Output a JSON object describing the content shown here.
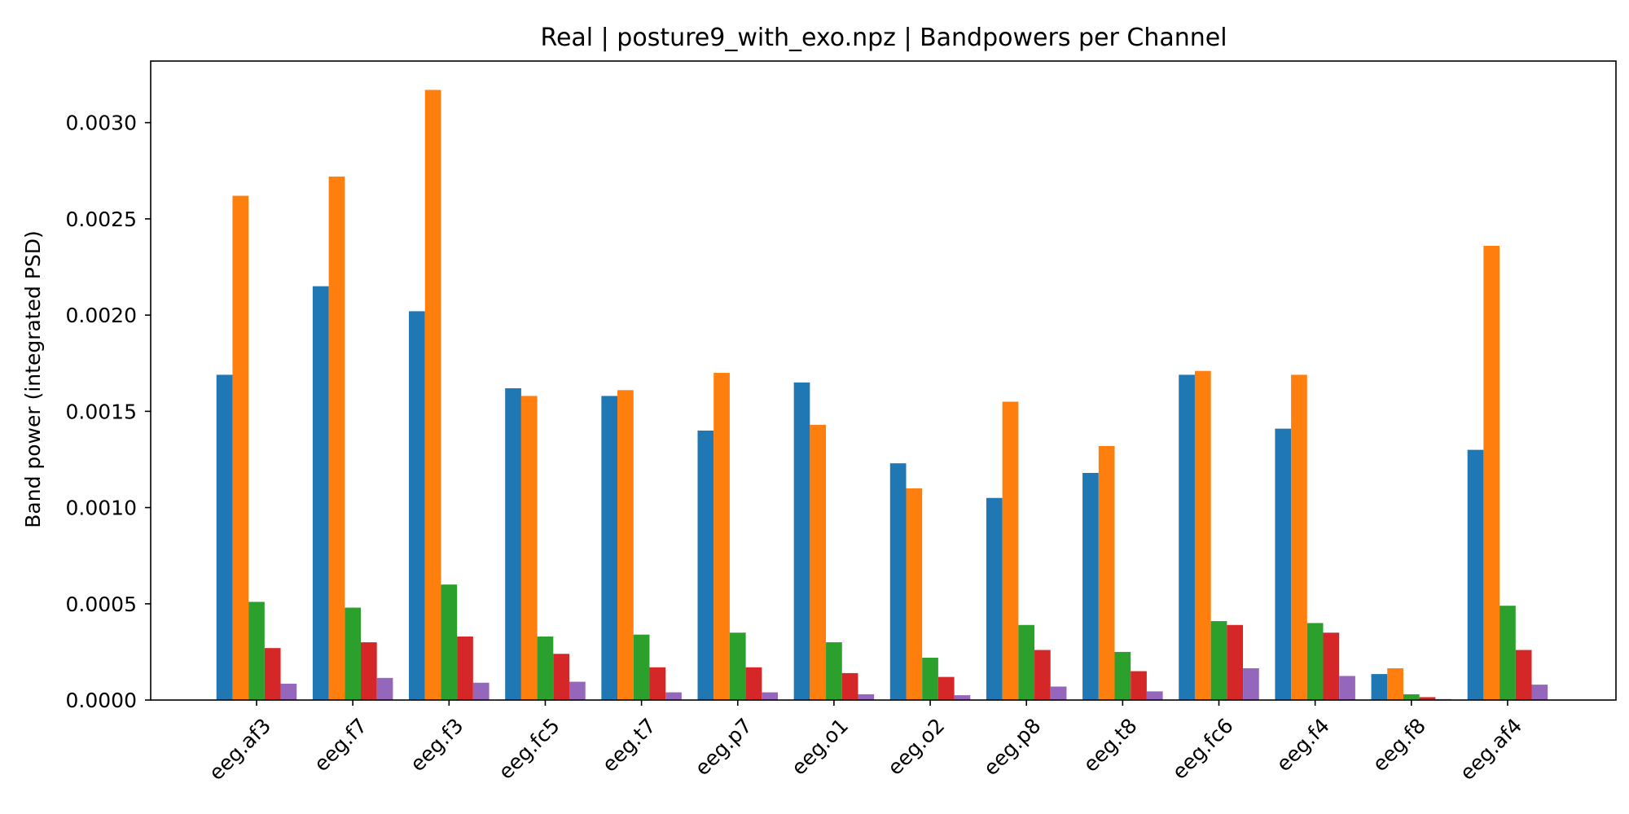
{
  "chart_data": {
    "type": "bar",
    "title": "Real | posture9_with_exo.npz | Bandpowers per Channel",
    "xlabel": "",
    "ylabel": "Band power (integrated PSD)",
    "ylim": [
      0,
      0.00332
    ],
    "yticks": [
      "0.0000",
      "0.0005",
      "0.0010",
      "0.0015",
      "0.0020",
      "0.0025",
      "0.0030"
    ],
    "ytick_values": [
      0,
      0.0005,
      0.001,
      0.0015,
      0.002,
      0.0025,
      0.003
    ],
    "grid": false,
    "legend": "none",
    "categories": [
      "eeg.af3",
      "eeg.f7",
      "eeg.f3",
      "eeg.fc5",
      "eeg.t7",
      "eeg.p7",
      "eeg.o1",
      "eeg.o2",
      "eeg.p8",
      "eeg.t8",
      "eeg.fc6",
      "eeg.f4",
      "eeg.f8",
      "eeg.af4"
    ],
    "series": [
      {
        "color": "#1f77b4",
        "values": [
          0.00169,
          0.00215,
          0.00202,
          0.00162,
          0.00158,
          0.0014,
          0.00165,
          0.00123,
          0.00105,
          0.00118,
          0.00169,
          0.00141,
          0.000135,
          0.0013
        ]
      },
      {
        "color": "#ff7f0e",
        "values": [
          0.00262,
          0.00272,
          0.00317,
          0.00158,
          0.00161,
          0.0017,
          0.00143,
          0.0011,
          0.00155,
          0.00132,
          0.00171,
          0.00169,
          0.000165,
          0.00236
        ]
      },
      {
        "color": "#2ca02c",
        "values": [
          0.00051,
          0.00048,
          0.0006,
          0.00033,
          0.00034,
          0.00035,
          0.0003,
          0.00022,
          0.00039,
          0.00025,
          0.00041,
          0.0004,
          3e-05,
          0.00049
        ]
      },
      {
        "color": "#d62728",
        "values": [
          0.00027,
          0.0003,
          0.00033,
          0.00024,
          0.00017,
          0.00017,
          0.00014,
          0.00012,
          0.00026,
          0.00015,
          0.00039,
          0.00035,
          1.5e-05,
          0.00026
        ]
      },
      {
        "color": "#9467bd",
        "values": [
          8.5e-05,
          0.000115,
          9e-05,
          9.5e-05,
          4e-05,
          4e-05,
          3e-05,
          2.5e-05,
          7e-05,
          4.5e-05,
          0.000165,
          0.000125,
          5e-06,
          8e-05
        ]
      }
    ]
  }
}
